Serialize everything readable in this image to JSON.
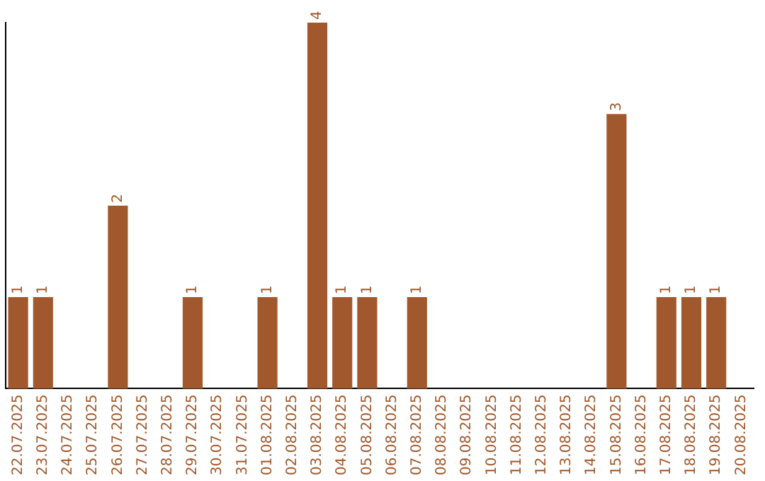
{
  "chart_data": {
    "type": "bar",
    "categories": [
      "22.07.2025",
      "23.07.2025",
      "24.07.2025",
      "25.07.2025",
      "26.07.2025",
      "27.07.2025",
      "28.07.2025",
      "29.07.2025",
      "30.07.2025",
      "31.07.2025",
      "01.08.2025",
      "02.08.2025",
      "03.08.2025",
      "04.08.2025",
      "05.08.2025",
      "06.08.2025",
      "07.08.2025",
      "08.08.2025",
      "09.08.2025",
      "10.08.2025",
      "11.08.2025",
      "12.08.2025",
      "13.08.2025",
      "14.08.2025",
      "15.08.2025",
      "16.08.2025",
      "17.08.2025",
      "18.08.2025",
      "19.08.2025",
      "20.08.2025"
    ],
    "values": [
      1,
      1,
      0,
      0,
      2,
      0,
      0,
      1,
      0,
      0,
      1,
      0,
      4,
      1,
      1,
      0,
      1,
      0,
      0,
      0,
      0,
      0,
      0,
      0,
      3,
      0,
      1,
      1,
      1,
      0
    ],
    "value_labels": [
      "1",
      "1",
      null,
      null,
      "2",
      null,
      null,
      "1",
      null,
      null,
      "1",
      null,
      "4",
      "1",
      "1",
      null,
      "1",
      null,
      null,
      null,
      null,
      null,
      null,
      null,
      "3",
      null,
      "1",
      "1",
      "1",
      null
    ],
    "color": "#a0582c",
    "grid": false,
    "legend": false,
    "tick_labels": "x"
  }
}
